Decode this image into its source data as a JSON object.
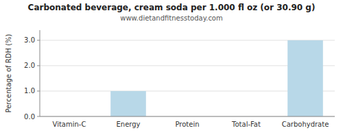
{
  "chart_data": {
    "type": "bar",
    "title": "Carbonated beverage, cream soda per 1.000 fl oz (or 30.90 g)",
    "subtitle": "www.dietandfitnesstoday.com",
    "categories": [
      "Vitamin-C",
      "Energy",
      "Protein",
      "Total-Fat",
      "Carbohydrate"
    ],
    "values": [
      0.0,
      1.0,
      0.0,
      0.0,
      3.0
    ],
    "color": "#b8d8e8",
    "ylabel": "Percentage of RDH (%)",
    "ylim": [
      0,
      3.4
    ],
    "yticks": [
      {
        "value": 0.0,
        "label": "0.0"
      },
      {
        "value": 1.0,
        "label": "1.0"
      },
      {
        "value": 2.0,
        "label": "2.0"
      },
      {
        "value": 3.0,
        "label": "3.0"
      }
    ],
    "grid": true
  }
}
